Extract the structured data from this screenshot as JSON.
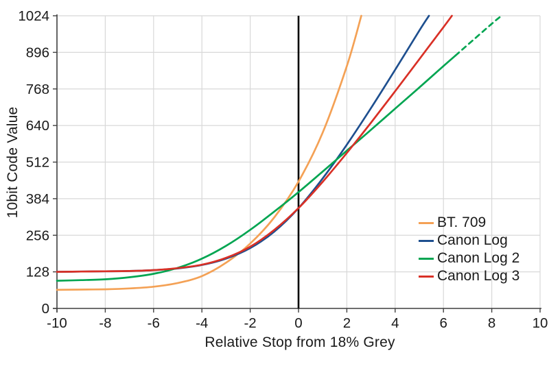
{
  "chart_data": {
    "type": "line",
    "title": "",
    "xlabel": "Relative Stop from 18% Grey",
    "ylabel": "10bit Code Value",
    "xlim": [
      -10,
      10
    ],
    "ylim": [
      0,
      1024
    ],
    "x_ticks": [
      -10,
      -8,
      -6,
      -4,
      -2,
      0,
      2,
      4,
      6,
      8,
      10
    ],
    "y_ticks": [
      0,
      128,
      256,
      384,
      512,
      640,
      768,
      896,
      1024
    ],
    "grid": true,
    "zero_line_x": 0,
    "legend_position": "right-middle",
    "colors": {
      "axis": "#404040",
      "grid": "#d8d8d8",
      "zero_line": "#000000",
      "text": "#1a1a1a",
      "background": "#ffffff"
    },
    "series": [
      {
        "name": "BT. 709",
        "color": "#F4A155",
        "style": "solid",
        "points": [
          [
            -10,
            65
          ],
          [
            -9,
            66
          ],
          [
            -8,
            67
          ],
          [
            -7,
            70
          ],
          [
            -6,
            76
          ],
          [
            -5,
            89
          ],
          [
            -4,
            113
          ],
          [
            -3,
            160
          ],
          [
            -2,
            227
          ],
          [
            -1,
            319
          ],
          [
            0,
            444
          ],
          [
            1,
            615
          ],
          [
            2,
            848
          ],
          [
            2.6,
            1024
          ]
        ]
      },
      {
        "name": "Canon Log",
        "color": "#1E4F8F",
        "style": "solid",
        "points": [
          [
            -10,
            128
          ],
          [
            -9,
            129
          ],
          [
            -8,
            130
          ],
          [
            -7,
            131
          ],
          [
            -6,
            134
          ],
          [
            -5,
            140
          ],
          [
            -4,
            152
          ],
          [
            -3,
            174
          ],
          [
            -2,
            211
          ],
          [
            -1,
            269
          ],
          [
            0,
            351
          ],
          [
            1,
            455
          ],
          [
            2,
            573
          ],
          [
            3,
            701
          ],
          [
            4,
            835
          ],
          [
            5,
            972
          ],
          [
            5.4,
            1024
          ]
        ]
      },
      {
        "name": "Canon Log 2",
        "color": "#00A551",
        "style": "solid_then_dashed",
        "dash_from_x": 6.5,
        "points": [
          [
            -10,
            97
          ],
          [
            -9,
            99
          ],
          [
            -8,
            102
          ],
          [
            -7,
            109
          ],
          [
            -6,
            121
          ],
          [
            -5,
            142
          ],
          [
            -4,
            174
          ],
          [
            -3,
            219
          ],
          [
            -2,
            275
          ],
          [
            -1,
            339
          ],
          [
            0,
            407
          ],
          [
            1,
            479
          ],
          [
            2,
            552
          ],
          [
            3,
            625
          ],
          [
            4,
            699
          ],
          [
            5,
            773
          ],
          [
            6,
            848
          ],
          [
            6.5,
            885
          ],
          [
            7,
            922
          ],
          [
            8,
            996
          ],
          [
            8.4,
            1024
          ]
        ]
      },
      {
        "name": "Canon Log 3",
        "color": "#D93026",
        "style": "solid",
        "points": [
          [
            -10,
            128
          ],
          [
            -9,
            129
          ],
          [
            -8,
            130
          ],
          [
            -7,
            131
          ],
          [
            -6,
            134
          ],
          [
            -5,
            141
          ],
          [
            -4,
            153
          ],
          [
            -3,
            177
          ],
          [
            -2,
            216
          ],
          [
            -1,
            275
          ],
          [
            0,
            351
          ],
          [
            1,
            443
          ],
          [
            2,
            544
          ],
          [
            3,
            650
          ],
          [
            4,
            760
          ],
          [
            5,
            872
          ],
          [
            6,
            984
          ],
          [
            6.35,
            1024
          ]
        ]
      }
    ]
  }
}
